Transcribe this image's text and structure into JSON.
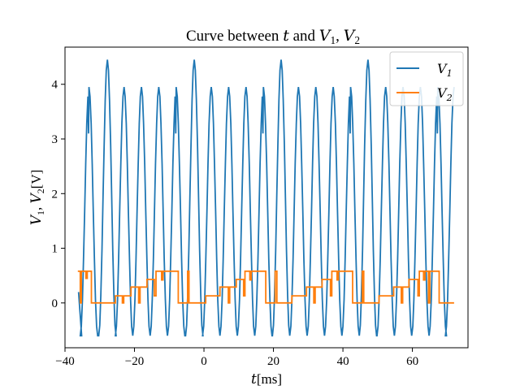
{
  "chart_data": {
    "type": "line",
    "title_parts": [
      "Curve between ",
      "t",
      " and ",
      "V",
      "1",
      ", ",
      "V",
      "2"
    ],
    "xlabel_parts": [
      "t",
      "[ms]"
    ],
    "ylabel_parts": [
      "V",
      "1",
      ", ",
      "V",
      "2",
      "[V]"
    ],
    "xlim": [
      -40,
      76
    ],
    "ylim": [
      -0.82,
      4.68
    ],
    "xticks": [
      -40,
      -20,
      0,
      20,
      40,
      60
    ],
    "yticks": [
      0,
      1,
      2,
      3,
      4
    ],
    "grid": false,
    "legend_position": "top-right",
    "series": [
      {
        "name_parts": [
          "V",
          "1"
        ],
        "color": "#1f77b4",
        "x": [
          -36,
          -35.5,
          -35,
          -34.5,
          -34,
          -33.5,
          -33.2,
          -33,
          -32.6,
          -32,
          -31.5,
          -31,
          -30.5,
          -30,
          -29.5,
          -29,
          -28.5,
          -28,
          -27.5,
          -27,
          -26.5,
          -26,
          -25.5,
          -25,
          -24.5,
          -24,
          -23.5,
          -23,
          -22.5,
          -22,
          -21.5,
          -21,
          -20.5,
          -20,
          -19.5,
          -19,
          -18.5,
          -18,
          -17.5,
          -17,
          -16.5,
          -16,
          -15.5,
          -15,
          -14.5,
          -14,
          -13.5,
          -13,
          -12.5,
          -12,
          -11.5,
          -11,
          -10.5,
          -10,
          -9.5,
          -9,
          -8.5,
          -8,
          -7.5,
          -7,
          -6.5,
          -6,
          -5.5,
          -5,
          -4.5,
          -4,
          -3.5,
          -3,
          -2.5,
          -2,
          -1.5,
          -1,
          -0.5,
          0,
          0.5,
          1,
          1.5,
          2,
          2.5,
          3,
          3.5,
          4,
          4.5,
          5,
          5.5,
          6,
          6.5,
          7,
          7.5,
          8,
          8.5,
          9,
          9.5,
          10,
          10.5,
          11,
          11.5,
          12,
          12.5,
          13,
          13.5,
          14,
          14.5,
          15,
          15.5,
          16,
          16.5,
          17,
          17.5,
          18,
          18.5,
          19,
          19.5,
          20,
          20.5,
          21,
          21.5,
          22,
          22.5,
          23,
          23.5,
          24,
          24.5,
          25,
          25.5,
          26,
          26.5,
          27,
          27.5,
          28,
          28.5,
          29,
          29.5,
          30,
          30.5,
          31,
          31.5,
          32,
          32.5,
          33,
          33.5,
          34,
          34.5,
          35,
          35.5,
          36,
          36.5,
          37,
          37.5,
          38,
          38.5,
          39,
          39.5,
          40,
          40.5,
          41,
          41.5,
          42,
          42.5,
          43,
          43.5,
          44,
          44.5,
          45,
          45.5,
          46,
          46.5,
          47,
          47.5,
          48,
          48.5,
          49,
          49.5,
          50,
          50.5,
          51,
          51.5,
          52,
          52.5,
          53,
          53.5,
          54,
          54.5,
          55,
          55.5,
          56,
          56.5,
          57,
          57.5,
          58,
          58.5,
          59,
          59.5,
          60,
          60.5,
          61,
          61.5,
          62,
          62.5,
          63,
          63.5,
          64,
          64.5,
          65,
          65.5,
          66,
          66.5,
          67,
          67.5,
          68,
          68.5,
          69,
          69.5,
          70,
          70.5,
          71,
          71.5,
          72
        ],
        "y_period_ms": 4.9,
        "y_phase_ms": -36.1,
        "y_min": -0.6,
        "peaks": [
          {
            "x": -33.1,
            "y": 3.95
          },
          {
            "x": -27.8,
            "y": 4.45
          },
          {
            "x": -23.0,
            "y": 3.95
          },
          {
            "x": -18.0,
            "y": 3.95
          },
          {
            "x": -13.0,
            "y": 3.95
          },
          {
            "x": -8.0,
            "y": 3.95
          },
          {
            "x": -2.8,
            "y": 4.45
          },
          {
            "x": 2.1,
            "y": 3.95
          },
          {
            "x": 7.1,
            "y": 3.95
          },
          {
            "x": 12.1,
            "y": 3.95
          },
          {
            "x": 17.1,
            "y": 3.95
          },
          {
            "x": 22.2,
            "y": 4.45
          },
          {
            "x": 27.2,
            "y": 3.95
          },
          {
            "x": 32.2,
            "y": 3.95
          },
          {
            "x": 37.2,
            "y": 3.95
          },
          {
            "x": 42.2,
            "y": 3.95
          },
          {
            "x": 47.2,
            "y": 4.45
          },
          {
            "x": 52.3,
            "y": 3.95
          },
          {
            "x": 57.3,
            "y": 3.95
          },
          {
            "x": 62.3,
            "y": 3.95
          },
          {
            "x": 67.3,
            "y": 3.95
          },
          {
            "x": 72.0,
            "y": 3.95
          }
        ],
        "notches": [
          {
            "x": -33.1,
            "y": 3.1
          },
          {
            "x": -8.0,
            "y": 3.1
          },
          {
            "x": 17.1,
            "y": 3.1
          },
          {
            "x": 42.2,
            "y": 3.1
          },
          {
            "x": 67.3,
            "y": 3.1
          }
        ]
      },
      {
        "name_parts": [
          "V",
          "2"
        ],
        "color": "#ff7f0e",
        "steps": [
          [
            -36.3,
            0.58
          ],
          [
            -35.6,
            0.58
          ],
          [
            -35.6,
            0.0
          ],
          [
            -35.3,
            0.0
          ],
          [
            -35.3,
            0.58
          ],
          [
            -34.0,
            0.58
          ],
          [
            -34.0,
            0.45
          ],
          [
            -33.6,
            0.45
          ],
          [
            -33.6,
            0.58
          ],
          [
            -32.4,
            0.58
          ],
          [
            -32.4,
            0.0
          ],
          [
            -25.5,
            0.0
          ],
          [
            -25.5,
            0.13
          ],
          [
            -23.5,
            0.13
          ],
          [
            -23.5,
            0.0
          ],
          [
            -23.1,
            0.0
          ],
          [
            -23.1,
            0.13
          ],
          [
            -21.0,
            0.13
          ],
          [
            -21.0,
            0.29
          ],
          [
            -18.8,
            0.29
          ],
          [
            -18.8,
            0.0
          ],
          [
            -18.4,
            0.0
          ],
          [
            -18.4,
            0.29
          ],
          [
            -16.4,
            0.29
          ],
          [
            -16.4,
            0.43
          ],
          [
            -14.3,
            0.43
          ],
          [
            -14.3,
            0.13
          ],
          [
            -13.8,
            0.13
          ],
          [
            -13.8,
            0.58
          ],
          [
            -12.2,
            0.58
          ],
          [
            -12.2,
            0.42
          ],
          [
            -11.8,
            0.42
          ],
          [
            -11.8,
            0.58
          ],
          [
            -7.4,
            0.58
          ],
          [
            -7.4,
            0.0
          ],
          [
            -4.7,
            0.0
          ],
          [
            -4.7,
            0.58
          ],
          [
            -4.3,
            0.58
          ],
          [
            -4.3,
            0.0
          ],
          [
            0.5,
            0.0
          ],
          [
            0.5,
            0.13
          ],
          [
            4.6,
            0.13
          ],
          [
            4.6,
            0.29
          ],
          [
            7.0,
            0.29
          ],
          [
            7.0,
            0.0
          ],
          [
            7.4,
            0.0
          ],
          [
            7.4,
            0.29
          ],
          [
            9.3,
            0.29
          ],
          [
            9.3,
            0.43
          ],
          [
            11.4,
            0.43
          ],
          [
            11.4,
            0.13
          ],
          [
            11.8,
            0.13
          ],
          [
            11.8,
            0.58
          ],
          [
            13.2,
            0.58
          ],
          [
            13.2,
            0.42
          ],
          [
            13.6,
            0.42
          ],
          [
            13.6,
            0.58
          ],
          [
            17.8,
            0.58
          ],
          [
            17.8,
            0.0
          ],
          [
            20.5,
            0.0
          ],
          [
            20.5,
            0.58
          ],
          [
            21.0,
            0.58
          ],
          [
            21.0,
            0.0
          ],
          [
            25.3,
            0.0
          ],
          [
            25.3,
            0.13
          ],
          [
            29.5,
            0.13
          ],
          [
            29.5,
            0.29
          ],
          [
            31.6,
            0.29
          ],
          [
            31.6,
            0.0
          ],
          [
            32.0,
            0.0
          ],
          [
            32.0,
            0.29
          ],
          [
            34.0,
            0.29
          ],
          [
            34.0,
            0.43
          ],
          [
            36.4,
            0.43
          ],
          [
            36.4,
            0.13
          ],
          [
            36.8,
            0.13
          ],
          [
            36.8,
            0.58
          ],
          [
            38.3,
            0.58
          ],
          [
            38.3,
            0.42
          ],
          [
            38.7,
            0.42
          ],
          [
            38.7,
            0.58
          ],
          [
            42.8,
            0.58
          ],
          [
            42.8,
            0.0
          ],
          [
            45.6,
            0.0
          ],
          [
            45.6,
            0.58
          ],
          [
            46.0,
            0.58
          ],
          [
            46.0,
            0.0
          ],
          [
            50.4,
            0.0
          ],
          [
            50.4,
            0.13
          ],
          [
            54.6,
            0.13
          ],
          [
            54.6,
            0.29
          ],
          [
            56.8,
            0.29
          ],
          [
            56.8,
            0.0
          ],
          [
            57.2,
            0.0
          ],
          [
            57.2,
            0.29
          ],
          [
            59.0,
            0.29
          ],
          [
            59.0,
            0.43
          ],
          [
            61.6,
            0.43
          ],
          [
            61.6,
            0.13
          ],
          [
            62.0,
            0.13
          ],
          [
            62.0,
            0.58
          ],
          [
            63.2,
            0.58
          ],
          [
            63.2,
            0.42
          ],
          [
            63.6,
            0.42
          ],
          [
            63.6,
            0.58
          ],
          [
            64.6,
            0.58
          ],
          [
            64.6,
            0.0
          ],
          [
            65.0,
            0.0
          ],
          [
            65.0,
            0.58
          ],
          [
            67.7,
            0.58
          ],
          [
            67.7,
            0.0
          ],
          [
            72.0,
            0.0
          ]
        ]
      }
    ]
  }
}
